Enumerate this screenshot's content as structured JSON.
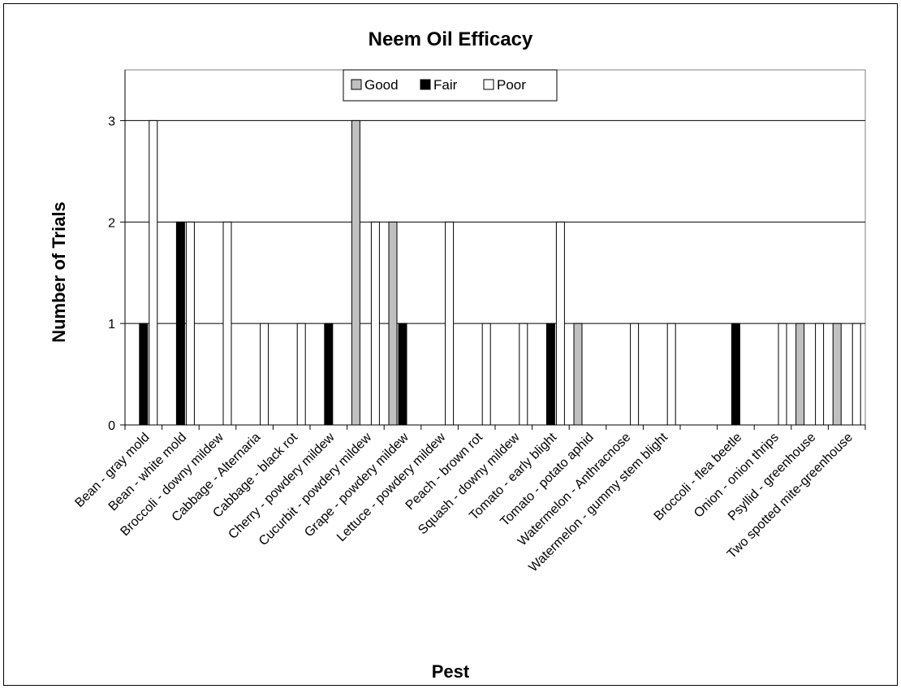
{
  "chart_data": {
    "type": "bar",
    "title": "Neem Oil Efficacy",
    "xlabel": "Pest",
    "ylabel": "Number of Trials",
    "ylim": [
      0,
      3.5
    ],
    "yticks": [
      0,
      1,
      2,
      3
    ],
    "grid": true,
    "legend_position": "top-center",
    "categories": [
      "Bean - gray mold",
      "Bean - white mold",
      "Broccoli - downy mildew",
      "Cabbage - Alternaria",
      "Cabbage - black rot",
      "Cherry - powdery mildew",
      "Cucurbit - powdery mildew",
      "Grape - powdery mildew",
      "Lettuce - powdery mildew",
      "Peach - brown rot",
      "Squash - downy mildew",
      "Tomato - early blight",
      "Tomato - potato aphid",
      "Watermelon - Anthracnose",
      "Watermelon - gummy stem blight",
      "",
      "Broccoli - flea beetle",
      "Onion - onion thrips",
      "Psyllid - greenhouse",
      "Two spotted mite-greenhouse"
    ],
    "series": [
      {
        "name": "Good",
        "color": "#c0c0c0",
        "values": [
          0,
          0,
          0,
          0,
          0,
          0,
          3,
          2,
          0,
          0,
          0,
          0,
          1,
          0,
          0,
          0,
          0,
          0,
          1,
          1
        ]
      },
      {
        "name": "Fair",
        "color": "#000000",
        "values": [
          1,
          2,
          0,
          0,
          0,
          1,
          0,
          1,
          0,
          0,
          0,
          1,
          0,
          0,
          0,
          0,
          1,
          0,
          0,
          0
        ]
      },
      {
        "name": "Poor",
        "color": "#ffffff",
        "values": [
          3,
          2,
          2,
          1,
          1,
          0,
          2,
          0,
          2,
          1,
          1,
          2,
          0,
          1,
          1,
          0,
          0,
          1,
          1,
          1
        ]
      }
    ]
  }
}
